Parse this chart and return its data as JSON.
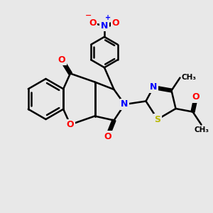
{
  "bg_color": "#e8e8e8",
  "bond_color": "#000000",
  "bond_width": 1.8,
  "dbo": 0.06,
  "atom_colors": {
    "O": "#ff0000",
    "N": "#0000ff",
    "S": "#b8b800"
  },
  "font_size": 9,
  "fig_size": [
    3.0,
    3.0
  ],
  "dpi": 100
}
